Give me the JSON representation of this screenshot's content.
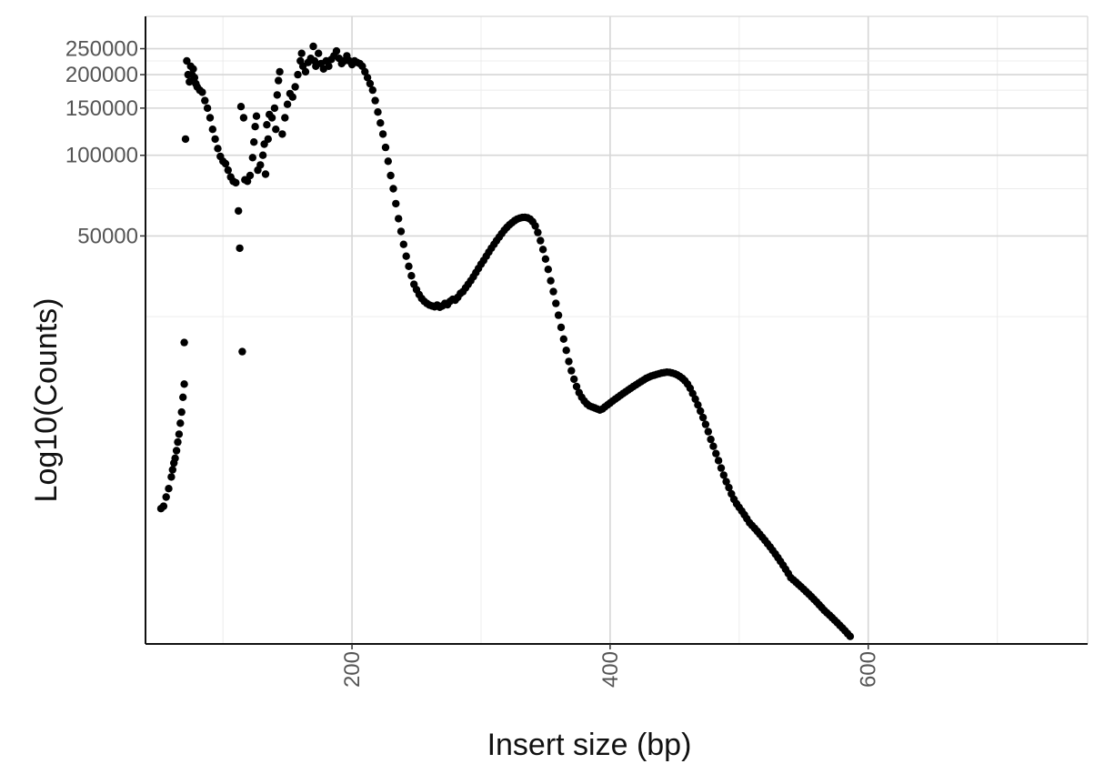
{
  "chart_data": {
    "type": "scatter",
    "xlabel": "Insert size (bp)",
    "ylabel": "Log10(Counts)",
    "y_scale": "log10",
    "grid": true,
    "legend": "none",
    "xlim": [
      40,
      770
    ],
    "ylim": [
      1500,
      330000
    ],
    "x_ticks": [
      200,
      400,
      600
    ],
    "y_ticks": [
      250000,
      200000,
      150000,
      100000,
      50000
    ],
    "series": [
      {
        "points": [
          [
            52,
            4800
          ],
          [
            54,
            4900
          ],
          [
            56,
            5300
          ],
          [
            58,
            5700
          ],
          [
            60,
            6300
          ],
          [
            61,
            6700
          ],
          [
            62,
            7100
          ],
          [
            63,
            7400
          ],
          [
            64,
            7900
          ],
          [
            65,
            8500
          ],
          [
            66,
            9100
          ],
          [
            67,
            10000
          ],
          [
            68,
            11000
          ],
          [
            69,
            12500
          ],
          [
            70,
            14000
          ],
          [
            70,
            20000
          ],
          [
            71,
            115000
          ],
          [
            72,
            225000
          ],
          [
            73,
            200000
          ],
          [
            74,
            188000
          ],
          [
            75,
            215000
          ],
          [
            76,
            200000
          ],
          [
            77,
            210000
          ],
          [
            78,
            195000
          ],
          [
            79,
            185000
          ],
          [
            80,
            180000
          ],
          [
            82,
            175000
          ],
          [
            84,
            172000
          ],
          [
            86,
            160000
          ],
          [
            88,
            150000
          ],
          [
            90,
            138000
          ],
          [
            92,
            125000
          ],
          [
            94,
            115000
          ],
          [
            96,
            106000
          ],
          [
            98,
            99000
          ],
          [
            100,
            95000
          ],
          [
            102,
            93000
          ],
          [
            104,
            88000
          ],
          [
            106,
            83000
          ],
          [
            108,
            80000
          ],
          [
            110,
            79000
          ],
          [
            112,
            62000
          ],
          [
            113,
            45000
          ],
          [
            114,
            152000
          ],
          [
            115,
            18500
          ],
          [
            116,
            138000
          ],
          [
            117,
            81000
          ],
          [
            119,
            80000
          ],
          [
            121,
            84000
          ],
          [
            123,
            98000
          ],
          [
            124,
            112000
          ],
          [
            125,
            128000
          ],
          [
            126,
            140000
          ],
          [
            127,
            88000
          ],
          [
            129,
            92000
          ],
          [
            131,
            100000
          ],
          [
            132,
            110000
          ],
          [
            133,
            85000
          ],
          [
            134,
            130000
          ],
          [
            135,
            115000
          ],
          [
            136,
            142000
          ],
          [
            138,
            138000
          ],
          [
            140,
            150000
          ],
          [
            141,
            125000
          ],
          [
            142,
            168000
          ],
          [
            143,
            190000
          ],
          [
            144,
            205000
          ],
          [
            146,
            120000
          ],
          [
            148,
            138000
          ],
          [
            150,
            155000
          ],
          [
            152,
            170000
          ],
          [
            154,
            165000
          ],
          [
            156,
            180000
          ],
          [
            158,
            200000
          ],
          [
            160,
            225000
          ],
          [
            161,
            240000
          ],
          [
            162,
            215000
          ],
          [
            164,
            205000
          ],
          [
            166,
            222000
          ],
          [
            168,
            230000
          ],
          [
            170,
            255000
          ],
          [
            171,
            225000
          ],
          [
            172,
            215000
          ],
          [
            174,
            240000
          ],
          [
            176,
            220000
          ],
          [
            178,
            210000
          ],
          [
            180,
            225000
          ],
          [
            182,
            215000
          ],
          [
            184,
            228000
          ],
          [
            186,
            235000
          ],
          [
            188,
            245000
          ],
          [
            190,
            230000
          ],
          [
            192,
            220000
          ],
          [
            194,
            225000
          ],
          [
            196,
            235000
          ],
          [
            198,
            225000
          ],
          [
            200,
            218000
          ],
          [
            202,
            225000
          ],
          [
            204,
            222000
          ],
          [
            206,
            220000
          ],
          [
            208,
            215000
          ],
          [
            210,
            205000
          ],
          [
            212,
            195000
          ],
          [
            214,
            185000
          ],
          [
            216,
            175000
          ],
          [
            218,
            160000
          ],
          [
            220,
            145000
          ],
          [
            222,
            132000
          ],
          [
            224,
            120000
          ],
          [
            226,
            107000
          ],
          [
            228,
            95000
          ],
          [
            230,
            84000
          ],
          [
            232,
            75000
          ],
          [
            234,
            66000
          ],
          [
            236,
            58000
          ],
          [
            238,
            52000
          ],
          [
            240,
            46500
          ],
          [
            242,
            42000
          ],
          [
            244,
            38500
          ],
          [
            246,
            35500
          ],
          [
            248,
            33000
          ],
          [
            250,
            31500
          ],
          [
            252,
            30200
          ],
          [
            254,
            29200
          ],
          [
            256,
            28500
          ],
          [
            258,
            28000
          ],
          [
            260,
            27600
          ],
          [
            262,
            27400
          ],
          [
            264,
            27200
          ],
          [
            266,
            27600
          ],
          [
            268,
            27100
          ],
          [
            270,
            27400
          ],
          [
            272,
            28000
          ],
          [
            274,
            27700
          ],
          [
            276,
            28500
          ],
          [
            278,
            29000
          ],
          [
            280,
            28800
          ],
          [
            282,
            29500
          ],
          [
            284,
            30500
          ],
          [
            286,
            31000
          ],
          [
            288,
            32000
          ],
          [
            290,
            33000
          ],
          [
            292,
            34000
          ],
          [
            294,
            35200
          ],
          [
            296,
            36500
          ],
          [
            298,
            37800
          ],
          [
            300,
            39200
          ],
          [
            302,
            40500
          ],
          [
            304,
            42000
          ],
          [
            306,
            43500
          ],
          [
            308,
            45000
          ],
          [
            310,
            46500
          ],
          [
            312,
            48000
          ],
          [
            314,
            49500
          ],
          [
            316,
            51000
          ],
          [
            318,
            52500
          ],
          [
            320,
            53800
          ],
          [
            322,
            55000
          ],
          [
            324,
            56000
          ],
          [
            326,
            57000
          ],
          [
            328,
            57800
          ],
          [
            330,
            58300
          ],
          [
            332,
            58600
          ],
          [
            334,
            58700
          ],
          [
            336,
            58400
          ],
          [
            338,
            57800
          ],
          [
            340,
            56500
          ],
          [
            342,
            54500
          ],
          [
            344,
            51500
          ],
          [
            346,
            48000
          ],
          [
            348,
            44500
          ],
          [
            350,
            41000
          ],
          [
            352,
            37500
          ],
          [
            354,
            34000
          ],
          [
            356,
            31000
          ],
          [
            358,
            28000
          ],
          [
            360,
            25300
          ],
          [
            362,
            22800
          ],
          [
            364,
            20600
          ],
          [
            366,
            18700
          ],
          [
            368,
            17000
          ],
          [
            370,
            15700
          ],
          [
            372,
            14600
          ],
          [
            374,
            13700
          ],
          [
            376,
            13000
          ],
          [
            378,
            12500
          ],
          [
            380,
            12100
          ],
          [
            382,
            11800
          ],
          [
            384,
            11600
          ],
          [
            386,
            11500
          ],
          [
            388,
            11400
          ],
          [
            390,
            11300
          ],
          [
            392,
            11200
          ],
          [
            394,
            11300
          ],
          [
            396,
            11500
          ],
          [
            398,
            11700
          ],
          [
            400,
            11900
          ],
          [
            402,
            12100
          ],
          [
            404,
            12300
          ],
          [
            406,
            12500
          ],
          [
            408,
            12700
          ],
          [
            410,
            12900
          ],
          [
            412,
            13100
          ],
          [
            414,
            13300
          ],
          [
            416,
            13500
          ],
          [
            418,
            13700
          ],
          [
            420,
            13900
          ],
          [
            422,
            14100
          ],
          [
            424,
            14300
          ],
          [
            426,
            14500
          ],
          [
            428,
            14700
          ],
          [
            430,
            14850
          ],
          [
            432,
            15000
          ],
          [
            434,
            15100
          ],
          [
            436,
            15200
          ],
          [
            438,
            15300
          ],
          [
            440,
            15400
          ],
          [
            442,
            15450
          ],
          [
            444,
            15500
          ],
          [
            446,
            15480
          ],
          [
            448,
            15400
          ],
          [
            450,
            15300
          ],
          [
            452,
            15150
          ],
          [
            454,
            14950
          ],
          [
            456,
            14700
          ],
          [
            458,
            14400
          ],
          [
            460,
            14000
          ],
          [
            462,
            13500
          ],
          [
            464,
            12900
          ],
          [
            466,
            12300
          ],
          [
            468,
            11700
          ],
          [
            470,
            11100
          ],
          [
            472,
            10500
          ],
          [
            474,
            9900
          ],
          [
            476,
            9300
          ],
          [
            478,
            8700
          ],
          [
            480,
            8200
          ],
          [
            482,
            7700
          ],
          [
            484,
            7250
          ],
          [
            486,
            6800
          ],
          [
            488,
            6400
          ],
          [
            490,
            6050
          ],
          [
            492,
            5750
          ],
          [
            494,
            5450
          ],
          [
            496,
            5200
          ],
          [
            498,
            5000
          ],
          [
            500,
            4850
          ],
          [
            502,
            4700
          ],
          [
            504,
            4550
          ],
          [
            506,
            4400
          ],
          [
            508,
            4250
          ],
          [
            510,
            4150
          ],
          [
            512,
            4050
          ],
          [
            514,
            3950
          ],
          [
            516,
            3850
          ],
          [
            518,
            3750
          ],
          [
            520,
            3650
          ],
          [
            522,
            3550
          ],
          [
            524,
            3450
          ],
          [
            526,
            3350
          ],
          [
            528,
            3250
          ],
          [
            530,
            3150
          ],
          [
            532,
            3050
          ],
          [
            534,
            2950
          ],
          [
            536,
            2850
          ],
          [
            538,
            2750
          ],
          [
            540,
            2650
          ],
          [
            542,
            2600
          ],
          [
            544,
            2550
          ],
          [
            546,
            2500
          ],
          [
            548,
            2450
          ],
          [
            550,
            2400
          ],
          [
            552,
            2350
          ],
          [
            554,
            2300
          ],
          [
            556,
            2250
          ],
          [
            558,
            2200
          ],
          [
            560,
            2150
          ],
          [
            562,
            2100
          ],
          [
            564,
            2050
          ],
          [
            566,
            2000
          ],
          [
            568,
            1960
          ],
          [
            570,
            1920
          ],
          [
            572,
            1880
          ],
          [
            574,
            1840
          ],
          [
            576,
            1800
          ],
          [
            578,
            1760
          ],
          [
            580,
            1720
          ],
          [
            582,
            1680
          ],
          [
            584,
            1640
          ],
          [
            586,
            1600
          ]
        ]
      }
    ]
  }
}
